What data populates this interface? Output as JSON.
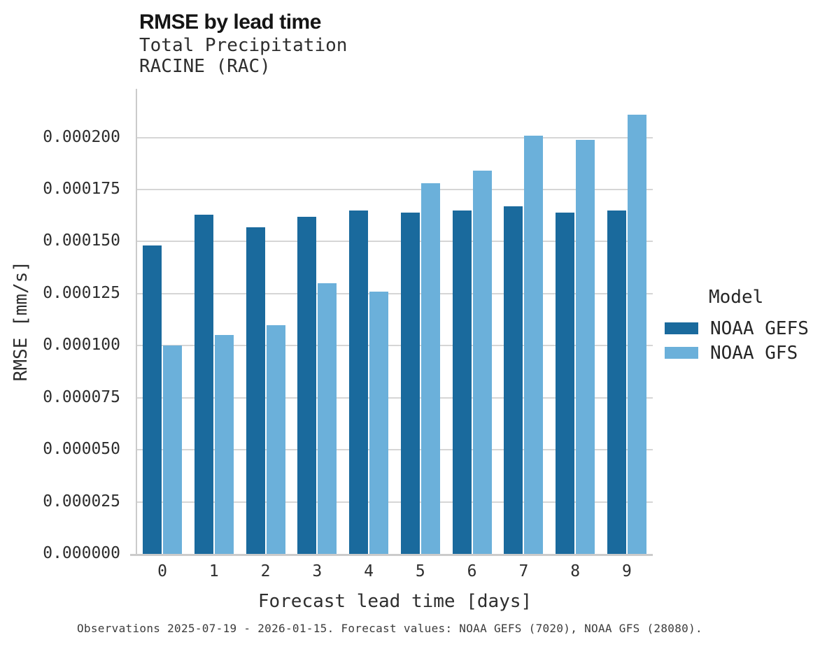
{
  "chart_data": {
    "type": "bar",
    "title": "RMSE by lead time",
    "subtitle1": "Total Precipitation",
    "subtitle2": "RACINE (RAC)",
    "xlabel": "Forecast lead time [days]",
    "ylabel": "RMSE [mm/s]",
    "categories": [
      "0",
      "1",
      "2",
      "3",
      "4",
      "5",
      "6",
      "7",
      "8",
      "9"
    ],
    "series": [
      {
        "name": "NOAA GEFS",
        "color": "#1a6a9d",
        "values": [
          0.000148,
          0.000163,
          0.000157,
          0.000162,
          0.000165,
          0.000164,
          0.000165,
          0.000167,
          0.000164,
          0.000165
        ]
      },
      {
        "name": "NOAA GFS",
        "color": "#6bb0da",
        "values": [
          0.0001,
          0.000105,
          0.00011,
          0.00013,
          0.000126,
          0.000178,
          0.000184,
          0.000201,
          0.000199,
          0.000211
        ]
      }
    ],
    "ylim": [
      0,
      0.0002234
    ],
    "yticks": [
      0,
      2.5e-05,
      5e-05,
      7.5e-05,
      0.0001,
      0.000125,
      0.00015,
      0.000175,
      0.0002
    ],
    "ytick_labels": [
      "0.000000",
      "0.000025",
      "0.000050",
      "0.000075",
      "0.000100",
      "0.000125",
      "0.000150",
      "0.000175",
      "0.000200"
    ],
    "grid": true,
    "legend_title": "Model",
    "legend_position": "right"
  },
  "caption": "Observations 2025-07-19 - 2026-01-15. Forecast values: NOAA GEFS (7020), NOAA GFS (28080)."
}
